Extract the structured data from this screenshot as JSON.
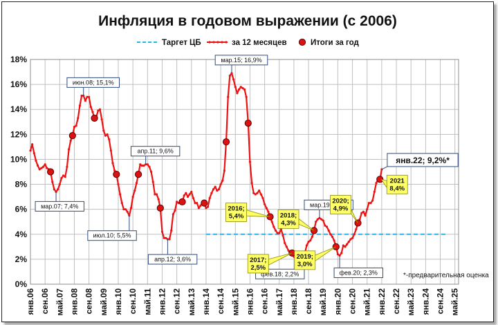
{
  "chart_data": {
    "type": "line",
    "title": "Инфляция в годовом выражении (с 2006)",
    "y_tick_labels": [
      "0%",
      "2%",
      "4%",
      "6%",
      "8%",
      "10%",
      "12%",
      "14%",
      "16%",
      "18%"
    ],
    "ylim": [
      0,
      18
    ],
    "grid": true,
    "legend_position": "top",
    "x_tick_labels": [
      "янв.06",
      "сен.06",
      "май.07",
      "янв.08",
      "сен.08",
      "май.09",
      "янв.10",
      "сен.10",
      "май.11",
      "янв.12",
      "сен.12",
      "май.13",
      "янв.14",
      "сен.14",
      "май.15",
      "янв.16",
      "сен.16",
      "май.17",
      "янв.18",
      "сен.18",
      "май.19",
      "янв.20",
      "сен.20",
      "май.21",
      "янв.22",
      "сен.22",
      "май.23",
      "янв.24",
      "сен.24",
      "май.25"
    ],
    "legend": [
      {
        "key": "target",
        "label": "Таргет ЦБ"
      },
      {
        "key": "monthly",
        "label": "за 12 месяцев"
      },
      {
        "key": "yearly",
        "label": "Итоги за год"
      }
    ],
    "series": [
      {
        "name": "за 12 месяцев",
        "color": "#ee1111",
        "points": [
          [
            "2006-01",
            10.7
          ],
          [
            "2006-02",
            11.2
          ],
          [
            "2006-03",
            10.5
          ],
          [
            "2006-04",
            9.9
          ],
          [
            "2006-05",
            9.5
          ],
          [
            "2006-06",
            9.2
          ],
          [
            "2006-07",
            9.3
          ],
          [
            "2006-08",
            9.4
          ],
          [
            "2006-09",
            9.6
          ],
          [
            "2006-10",
            9.3
          ],
          [
            "2006-11",
            9.2
          ],
          [
            "2006-12",
            9.0
          ],
          [
            "2007-01",
            8.2
          ],
          [
            "2007-02",
            7.6
          ],
          [
            "2007-03",
            7.4
          ],
          [
            "2007-04",
            7.6
          ],
          [
            "2007-05",
            8.0
          ],
          [
            "2007-06",
            8.5
          ],
          [
            "2007-07",
            8.7
          ],
          [
            "2007-08",
            8.6
          ],
          [
            "2007-09",
            9.4
          ],
          [
            "2007-10",
            10.8
          ],
          [
            "2007-11",
            11.5
          ],
          [
            "2007-12",
            11.9
          ],
          [
            "2008-01",
            12.6
          ],
          [
            "2008-02",
            12.7
          ],
          [
            "2008-03",
            13.3
          ],
          [
            "2008-04",
            14.3
          ],
          [
            "2008-05",
            15.1
          ],
          [
            "2008-06",
            15.1
          ],
          [
            "2008-07",
            14.7
          ],
          [
            "2008-08",
            15.0
          ],
          [
            "2008-09",
            15.0
          ],
          [
            "2008-10",
            14.2
          ],
          [
            "2008-11",
            13.8
          ],
          [
            "2008-12",
            13.3
          ],
          [
            "2009-01",
            13.4
          ],
          [
            "2009-02",
            13.9
          ],
          [
            "2009-03",
            14.0
          ],
          [
            "2009-04",
            13.2
          ],
          [
            "2009-05",
            12.3
          ],
          [
            "2009-06",
            11.9
          ],
          [
            "2009-07",
            12.0
          ],
          [
            "2009-08",
            11.6
          ],
          [
            "2009-09",
            10.7
          ],
          [
            "2009-10",
            9.7
          ],
          [
            "2009-11",
            9.1
          ],
          [
            "2009-12",
            8.8
          ],
          [
            "2010-01",
            8.0
          ],
          [
            "2010-02",
            7.2
          ],
          [
            "2010-03",
            6.5
          ],
          [
            "2010-04",
            6.0
          ],
          [
            "2010-05",
            6.0
          ],
          [
            "2010-06",
            5.8
          ],
          [
            "2010-07",
            5.5
          ],
          [
            "2010-08",
            6.1
          ],
          [
            "2010-09",
            7.0
          ],
          [
            "2010-10",
            7.5
          ],
          [
            "2010-11",
            8.1
          ],
          [
            "2010-12",
            8.8
          ],
          [
            "2011-01",
            9.6
          ],
          [
            "2011-02",
            9.5
          ],
          [
            "2011-03",
            9.5
          ],
          [
            "2011-04",
            9.6
          ],
          [
            "2011-05",
            9.6
          ],
          [
            "2011-06",
            9.4
          ],
          [
            "2011-07",
            9.0
          ],
          [
            "2011-08",
            8.2
          ],
          [
            "2011-09",
            7.2
          ],
          [
            "2011-10",
            7.2
          ],
          [
            "2011-11",
            6.8
          ],
          [
            "2011-12",
            6.1
          ],
          [
            "2012-01",
            4.2
          ],
          [
            "2012-02",
            3.7
          ],
          [
            "2012-03",
            3.7
          ],
          [
            "2012-04",
            3.6
          ],
          [
            "2012-05",
            3.6
          ],
          [
            "2012-06",
            4.3
          ],
          [
            "2012-07",
            5.6
          ],
          [
            "2012-08",
            5.9
          ],
          [
            "2012-09",
            6.6
          ],
          [
            "2012-10",
            6.5
          ],
          [
            "2012-11",
            6.5
          ],
          [
            "2012-12",
            6.6
          ],
          [
            "2013-01",
            7.1
          ],
          [
            "2013-02",
            7.3
          ],
          [
            "2013-03",
            7.0
          ],
          [
            "2013-04",
            7.2
          ],
          [
            "2013-05",
            7.4
          ],
          [
            "2013-06",
            6.9
          ],
          [
            "2013-07",
            6.5
          ],
          [
            "2013-08",
            6.5
          ],
          [
            "2013-09",
            6.1
          ],
          [
            "2013-10",
            6.3
          ],
          [
            "2013-11",
            6.5
          ],
          [
            "2013-12",
            6.5
          ],
          [
            "2014-01",
            6.1
          ],
          [
            "2014-02",
            6.2
          ],
          [
            "2014-03",
            6.9
          ],
          [
            "2014-04",
            7.3
          ],
          [
            "2014-05",
            7.6
          ],
          [
            "2014-06",
            7.8
          ],
          [
            "2014-07",
            7.5
          ],
          [
            "2014-08",
            7.6
          ],
          [
            "2014-09",
            8.0
          ],
          [
            "2014-10",
            8.3
          ],
          [
            "2014-11",
            9.1
          ],
          [
            "2014-12",
            11.4
          ],
          [
            "2015-01",
            15.0
          ],
          [
            "2015-02",
            16.7
          ],
          [
            "2015-03",
            16.9
          ],
          [
            "2015-04",
            16.4
          ],
          [
            "2015-05",
            15.8
          ],
          [
            "2015-06",
            15.3
          ],
          [
            "2015-07",
            15.6
          ],
          [
            "2015-08",
            15.8
          ],
          [
            "2015-09",
            15.7
          ],
          [
            "2015-10",
            15.6
          ],
          [
            "2015-11",
            15.0
          ],
          [
            "2015-12",
            12.9
          ],
          [
            "2016-01",
            9.8
          ],
          [
            "2016-02",
            8.1
          ],
          [
            "2016-03",
            7.3
          ],
          [
            "2016-04",
            7.2
          ],
          [
            "2016-05",
            7.3
          ],
          [
            "2016-06",
            7.5
          ],
          [
            "2016-07",
            7.2
          ],
          [
            "2016-08",
            6.9
          ],
          [
            "2016-09",
            6.4
          ],
          [
            "2016-10",
            6.1
          ],
          [
            "2016-11",
            5.8
          ],
          [
            "2016-12",
            5.4
          ],
          [
            "2017-01",
            5.0
          ],
          [
            "2017-02",
            4.6
          ],
          [
            "2017-03",
            4.3
          ],
          [
            "2017-04",
            4.1
          ],
          [
            "2017-05",
            4.1
          ],
          [
            "2017-06",
            4.4
          ],
          [
            "2017-07",
            3.9
          ],
          [
            "2017-08",
            3.3
          ],
          [
            "2017-09",
            3.0
          ],
          [
            "2017-10",
            2.7
          ],
          [
            "2017-11",
            2.5
          ],
          [
            "2017-12",
            2.5
          ],
          [
            "2018-01",
            2.2
          ],
          [
            "2018-02",
            2.2
          ],
          [
            "2018-03",
            2.4
          ],
          [
            "2018-04",
            2.4
          ],
          [
            "2018-05",
            2.4
          ],
          [
            "2018-06",
            2.3
          ],
          [
            "2018-07",
            2.5
          ],
          [
            "2018-08",
            3.1
          ],
          [
            "2018-09",
            3.4
          ],
          [
            "2018-10",
            3.5
          ],
          [
            "2018-11",
            3.8
          ],
          [
            "2018-12",
            4.3
          ],
          [
            "2019-01",
            5.0
          ],
          [
            "2019-02",
            5.2
          ],
          [
            "2019-03",
            5.3
          ],
          [
            "2019-04",
            5.2
          ],
          [
            "2019-05",
            5.1
          ],
          [
            "2019-06",
            4.7
          ],
          [
            "2019-07",
            4.6
          ],
          [
            "2019-08",
            4.3
          ],
          [
            "2019-09",
            4.0
          ],
          [
            "2019-10",
            3.8
          ],
          [
            "2019-11",
            3.5
          ],
          [
            "2019-12",
            3.0
          ],
          [
            "2020-01",
            2.4
          ],
          [
            "2020-02",
            2.3
          ],
          [
            "2020-03",
            2.5
          ],
          [
            "2020-04",
            3.1
          ],
          [
            "2020-05",
            3.0
          ],
          [
            "2020-06",
            3.2
          ],
          [
            "2020-07",
            3.4
          ],
          [
            "2020-08",
            3.6
          ],
          [
            "2020-09",
            3.7
          ],
          [
            "2020-10",
            4.0
          ],
          [
            "2020-11",
            4.4
          ],
          [
            "2020-12",
            4.9
          ],
          [
            "2021-01",
            5.2
          ],
          [
            "2021-02",
            5.7
          ],
          [
            "2021-03",
            5.8
          ],
          [
            "2021-04",
            5.5
          ],
          [
            "2021-05",
            6.0
          ],
          [
            "2021-06",
            6.5
          ],
          [
            "2021-07",
            6.5
          ],
          [
            "2021-08",
            6.7
          ],
          [
            "2021-09",
            7.4
          ],
          [
            "2021-10",
            8.1
          ],
          [
            "2021-11",
            8.4
          ],
          [
            "2021-12",
            8.4
          ],
          [
            "2022-01",
            9.2
          ]
        ]
      },
      {
        "name": "Таргет ЦБ",
        "color": "#2bb3e6",
        "points": [
          [
            "2014-01",
            4.0
          ],
          [
            "2025-01",
            4.0
          ]
        ]
      },
      {
        "name": "Итоги за год",
        "color": "#dd1111",
        "points": [
          [
            "2006-12",
            9.0
          ],
          [
            "2007-12",
            11.9
          ],
          [
            "2008-12",
            13.3
          ],
          [
            "2009-12",
            8.8
          ],
          [
            "2010-12",
            8.8
          ],
          [
            "2011-12",
            6.1
          ],
          [
            "2012-12",
            6.6
          ],
          [
            "2013-12",
            6.5
          ],
          [
            "2014-12",
            11.4
          ],
          [
            "2015-12",
            12.9
          ],
          [
            "2016-12",
            5.4
          ],
          [
            "2017-12",
            2.5
          ],
          [
            "2018-12",
            4.3
          ],
          [
            "2019-12",
            3.0
          ],
          [
            "2020-12",
            4.9
          ],
          [
            "2021-12",
            8.4
          ]
        ]
      }
    ],
    "annotations": [
      {
        "text": "мар.07; 7,4%",
        "date": "2007-03",
        "value": 7.4,
        "style": "white",
        "dir": "below"
      },
      {
        "text": "июн.08; 15,1%",
        "date": "2008-06",
        "value": 15.1,
        "style": "white",
        "dir": "above"
      },
      {
        "text": "июл.10; 5,5%",
        "date": "2010-07",
        "value": 5.5,
        "style": "white",
        "dir": "below"
      },
      {
        "text": "апр.11; 9,6%",
        "date": "2011-04",
        "value": 9.6,
        "style": "white",
        "dir": "above"
      },
      {
        "text": "апр.12; 3,6%",
        "date": "2012-04",
        "value": 3.6,
        "style": "white",
        "dir": "below"
      },
      {
        "text": "мар.15; 16,9%",
        "date": "2015-03",
        "value": 16.9,
        "style": "white",
        "dir": "above"
      },
      {
        "text": "фев.18; 2,2%",
        "date": "2018-02",
        "value": 2.2,
        "style": "white",
        "dir": "below"
      },
      {
        "text": "мар.19; 5,3%",
        "date": "2019-03",
        "value": 5.3,
        "style": "white",
        "dir": "above"
      },
      {
        "text": "фев.20; 2,3%",
        "date": "2020-02",
        "value": 2.3,
        "style": "white",
        "dir": "below"
      },
      {
        "text": "янв.22; 9,2%*",
        "date": "2022-01",
        "value": 9.2,
        "style": "big",
        "dir": "right"
      },
      {
        "lines": [
          "2016;",
          "5,4%"
        ],
        "date": "2016-12",
        "value": 5.4,
        "style": "yellow",
        "dir": "left"
      },
      {
        "lines": [
          "2017;",
          "2,5%"
        ],
        "date": "2017-12",
        "value": 2.5,
        "style": "yellow",
        "dir": "below-left"
      },
      {
        "lines": [
          "2018;",
          "4,3%"
        ],
        "date": "2018-12",
        "value": 4.3,
        "style": "yellow",
        "dir": "up-left"
      },
      {
        "lines": [
          "2019;",
          "3,0%"
        ],
        "date": "2019-12",
        "value": 3.0,
        "style": "yellow",
        "dir": "below-left"
      },
      {
        "lines": [
          "2020;",
          "4,9%"
        ],
        "date": "2020-12",
        "value": 4.9,
        "style": "yellow",
        "dir": "up-left"
      },
      {
        "lines": [
          "2021",
          "8,4%"
        ],
        "date": "2021-12",
        "value": 8.4,
        "style": "yellow",
        "dir": "right"
      }
    ],
    "footnote": "*-предварительная оценка"
  }
}
